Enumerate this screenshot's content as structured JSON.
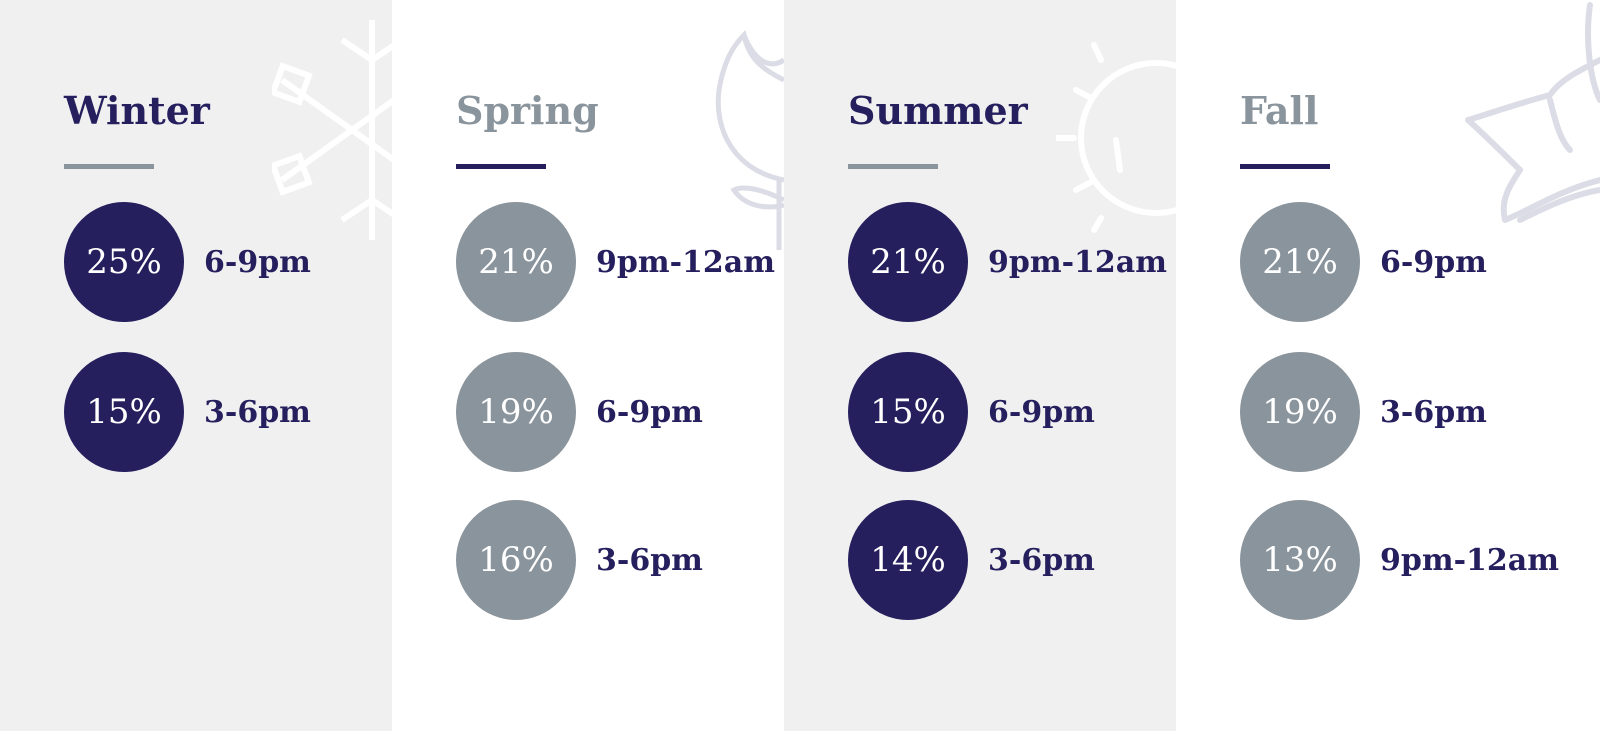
{
  "colors": {
    "navy": "#261f5e",
    "gray": "#8a949c",
    "panel_gray": "#f0f0f0",
    "panel_white": "#ffffff"
  },
  "seasons": [
    {
      "name": "Winter",
      "icon": "snowflake-icon",
      "accent": "navy",
      "stats": [
        {
          "value": "25%",
          "time": "6-9pm"
        },
        {
          "value": "15%",
          "time": "3-6pm"
        }
      ]
    },
    {
      "name": "Spring",
      "icon": "tulip-icon",
      "accent": "gray",
      "stats": [
        {
          "value": "21%",
          "time": "9pm-12am"
        },
        {
          "value": "19%",
          "time": "6-9pm"
        },
        {
          "value": "16%",
          "time": "3-6pm"
        }
      ]
    },
    {
      "name": "Summer",
      "icon": "sun-icon",
      "accent": "navy",
      "stats": [
        {
          "value": "21%",
          "time": "9pm-12am"
        },
        {
          "value": "15%",
          "time": "6-9pm"
        },
        {
          "value": "14%",
          "time": "3-6pm"
        }
      ]
    },
    {
      "name": "Fall",
      "icon": "leaf-icon",
      "accent": "gray",
      "stats": [
        {
          "value": "21%",
          "time": "6-9pm"
        },
        {
          "value": "19%",
          "time": "3-6pm"
        },
        {
          "value": "13%",
          "time": "9pm-12am"
        }
      ]
    }
  ]
}
